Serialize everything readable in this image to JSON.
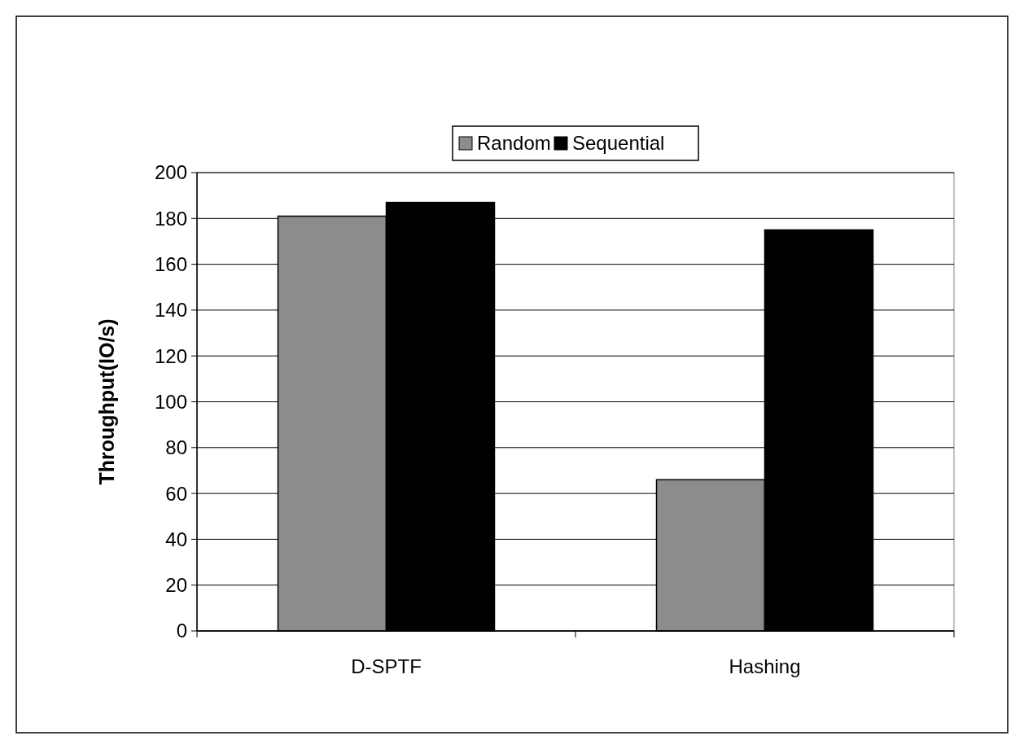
{
  "chart_data": {
    "type": "bar",
    "ylabel": "Throughput(IO/s)",
    "categories": [
      "D-SPTF",
      "Hashing"
    ],
    "series": [
      {
        "name": "Random",
        "color": "#8c8c8c",
        "values": [
          181,
          66
        ]
      },
      {
        "name": "Sequential",
        "color": "#000000",
        "values": [
          187,
          175
        ]
      }
    ],
    "ylim": [
      0,
      200
    ],
    "yticks": [
      0,
      20,
      40,
      60,
      80,
      100,
      120,
      140,
      160,
      180,
      200
    ],
    "grid": "y",
    "legend": "top"
  }
}
